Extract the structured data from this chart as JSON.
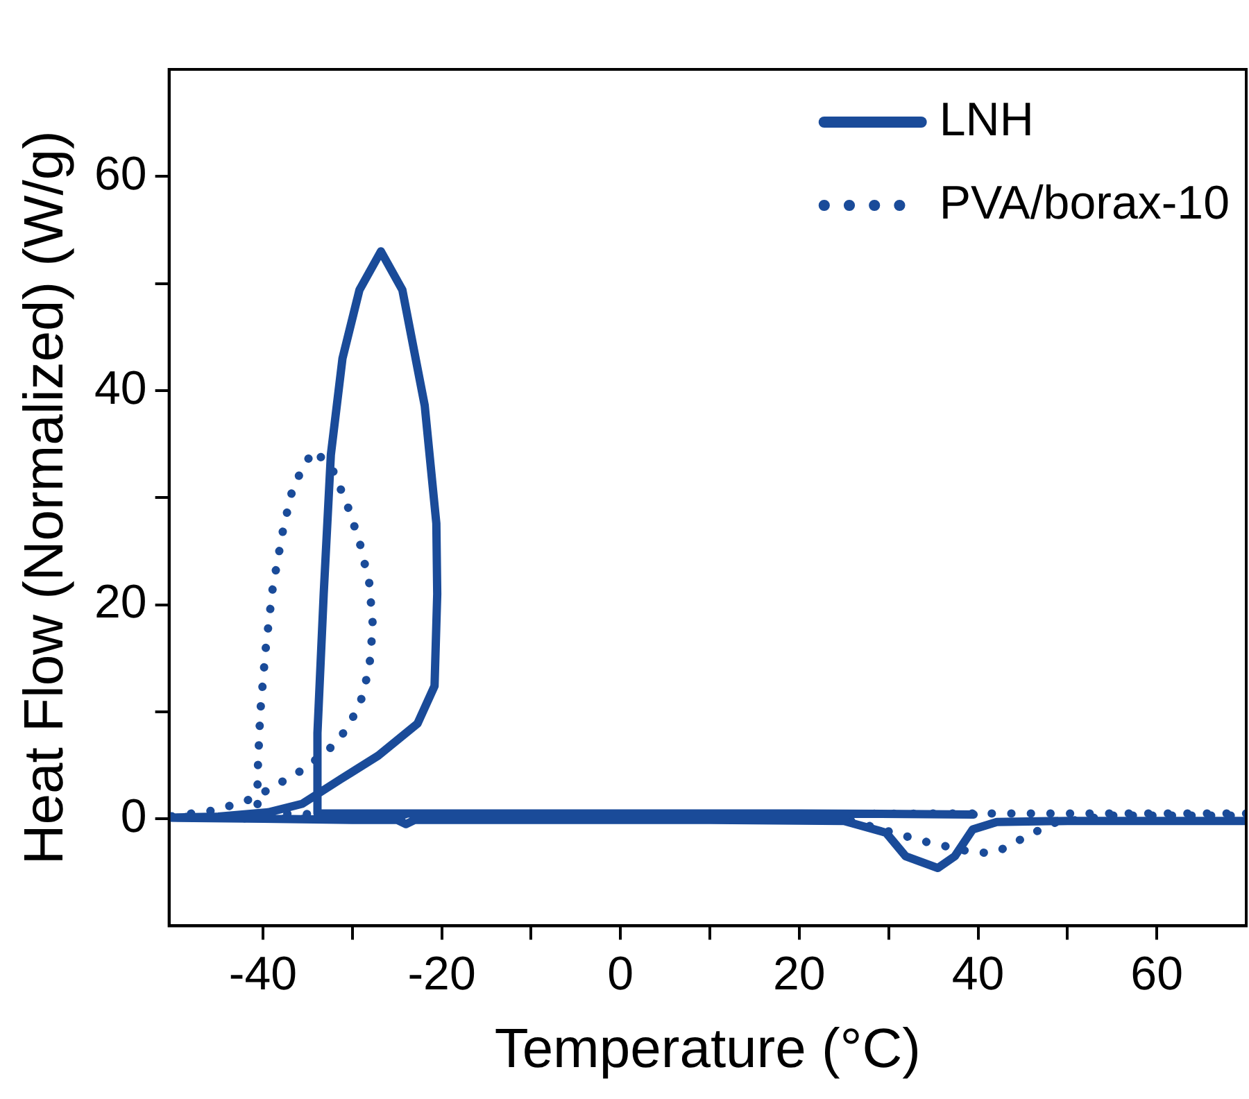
{
  "chart_data": {
    "type": "line",
    "xlabel": "Temperature (°C)",
    "ylabel": "Heat Flow (Normalized) (W/g)",
    "xlim": [
      -50.5,
      70
    ],
    "ylim": [
      -10,
      70
    ],
    "xticks": [
      -40,
      {
        "value": -30,
        "label": null
      },
      -20,
      {
        "value": -10,
        "label": null
      },
      0,
      {
        "value": 10,
        "label": null
      },
      20,
      {
        "value": 30,
        "label": null
      },
      40,
      {
        "value": 50,
        "label": null
      },
      60
    ],
    "yticks": [
      0,
      {
        "value": 10,
        "label": null
      },
      20,
      {
        "value": 30,
        "label": null
      },
      40,
      {
        "value": 50,
        "label": null
      },
      60
    ],
    "grid": false,
    "legend": "top right",
    "marker": "none",
    "series": [
      {
        "name": "LNH",
        "color": "#1a4b99",
        "line_style": "solid",
        "x": [
          39.5,
          20,
          0,
          -20,
          -33.9,
          -33.9,
          -33.2,
          -32.4,
          -31.1,
          -29.2,
          -26.8,
          -24.4,
          -21.9,
          -20.6,
          -20.5,
          -20.8,
          -22.7,
          -27.1,
          -31.3,
          -35.6,
          -39.4,
          -45,
          -50.5,
          -40,
          -30,
          -25,
          -24,
          -23,
          -10,
          10,
          25,
          29.7,
          31.9,
          35.5,
          37.4,
          39.4,
          42.1,
          50,
          70
        ],
        "values": [
          0.4,
          0.5,
          0.5,
          0.5,
          0.5,
          8,
          21,
          34,
          43,
          49.4,
          53,
          49.4,
          38.6,
          27.6,
          21,
          12.4,
          8.9,
          5.9,
          3.7,
          1.4,
          0.6,
          0.2,
          0.1,
          0,
          -0.1,
          -0.1,
          -0.5,
          -0.1,
          -0.1,
          -0.1,
          -0.2,
          -1.3,
          -3.5,
          -4.6,
          -3.5,
          -1,
          -0.3,
          -0.2,
          -0.2
        ]
      },
      {
        "name": "PVA/borax-10",
        "color": "#1a4b99",
        "line_style": "dotted",
        "x": [
          70,
          40,
          0,
          -30,
          -40.6,
          -40.6,
          -40.3,
          -39.7,
          -38.9,
          -37.7,
          -36.6,
          -34.4,
          -32.4,
          -30.6,
          -29.2,
          -28.1,
          -27.7,
          -28.1,
          -29.2,
          -31.6,
          -35.3,
          -39.4,
          -41.8,
          -45.3,
          -50.5,
          -40,
          -20,
          0,
          25,
          30.5,
          34.4,
          39.8,
          42.1,
          45.3,
          48.4,
          55,
          70
        ],
        "values": [
          0.5,
          0.5,
          0.4,
          0.4,
          0.5,
          4.1,
          9.9,
          15.8,
          21.6,
          27.2,
          31.1,
          34.4,
          33,
          29.4,
          25.9,
          22,
          18,
          14.1,
          10.5,
          7.2,
          4.7,
          2.7,
          1.7,
          0.8,
          0.2,
          0,
          0,
          0,
          0,
          -1.3,
          -2.2,
          -3.2,
          -3.1,
          -1.7,
          -0.4,
          0.3,
          0.3
        ]
      }
    ]
  }
}
